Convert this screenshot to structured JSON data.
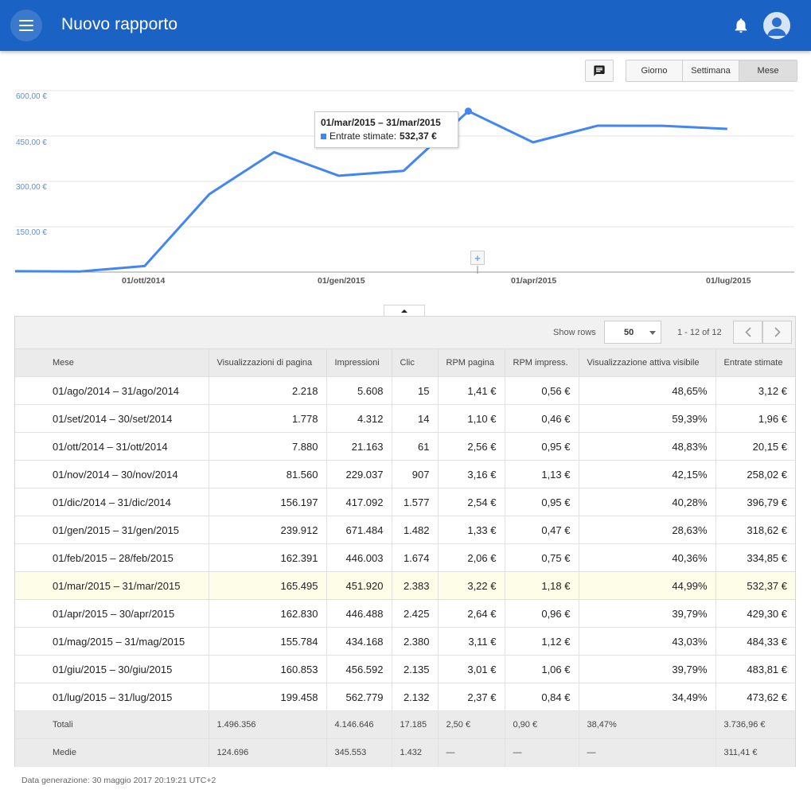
{
  "header": {
    "title": "Nuovo rapporto"
  },
  "toolbar": {
    "granularity": [
      "Giorno",
      "Settimana",
      "Mese"
    ],
    "active": "Mese"
  },
  "chart_data": {
    "type": "line",
    "series": [
      {
        "name": "Entrate stimate",
        "color": "#4285f4",
        "values": [
          3.12,
          1.96,
          20.15,
          258.02,
          396.79,
          318.62,
          334.85,
          532.37,
          429.3,
          484.33,
          483.81,
          473.62
        ]
      }
    ],
    "x": [
      "01/ago/2014",
      "01/set/2014",
      "01/ott/2014",
      "01/nov/2014",
      "01/dic/2014",
      "01/gen/2015",
      "01/feb/2015",
      "01/mar/2015",
      "01/apr/2015",
      "01/mag/2015",
      "01/giu/2015",
      "01/lug/2015"
    ],
    "y_ticks": [
      "150,00 €",
      "300,00 €",
      "450,00 €",
      "600,00 €"
    ],
    "x_tick_labels": [
      "01/ott/2014",
      "01/gen/2015",
      "01/apr/2015",
      "01/lug/2015"
    ],
    "ylim": [
      0,
      600
    ],
    "grid": true,
    "tooltip": {
      "title": "01/mar/2015 – 31/mar/2015",
      "label": "Entrate stimate:",
      "value": "532,37 €"
    }
  },
  "pager": {
    "show_rows_label": "Show rows",
    "rows": "50",
    "range": "1 - 12 of 12"
  },
  "table": {
    "columns": [
      "Mese",
      "Visualizzazioni di pagina",
      "Impressioni",
      "Clic",
      "RPM pagina",
      "RPM impress.",
      "Visualizzazione attiva visibile",
      "Entrate stimate"
    ],
    "rows": [
      [
        "01/ago/2014 – 31/ago/2014",
        "2.218",
        "5.608",
        "15",
        "1,41 €",
        "0,56 €",
        "48,65%",
        "3,12 €"
      ],
      [
        "01/set/2014 – 30/set/2014",
        "1.778",
        "4.312",
        "14",
        "1,10 €",
        "0,46 €",
        "59,39%",
        "1,96 €"
      ],
      [
        "01/ott/2014 – 31/ott/2014",
        "7.880",
        "21.163",
        "61",
        "2,56 €",
        "0,95 €",
        "48,83%",
        "20,15 €"
      ],
      [
        "01/nov/2014 – 30/nov/2014",
        "81.560",
        "229.037",
        "907",
        "3,16 €",
        "1,13 €",
        "42,15%",
        "258,02 €"
      ],
      [
        "01/dic/2014 – 31/dic/2014",
        "156.197",
        "417.092",
        "1.577",
        "2,54 €",
        "0,95 €",
        "40,28%",
        "396,79 €"
      ],
      [
        "01/gen/2015 – 31/gen/2015",
        "239.912",
        "671.484",
        "1.482",
        "1,33 €",
        "0,47 €",
        "28,63%",
        "318,62 €"
      ],
      [
        "01/feb/2015 – 28/feb/2015",
        "162.391",
        "446.003",
        "1.674",
        "2,06 €",
        "0,75 €",
        "40,36%",
        "334,85 €"
      ],
      [
        "01/mar/2015 – 31/mar/2015",
        "165.495",
        "451.920",
        "2.383",
        "3,22 €",
        "1,18 €",
        "44,99%",
        "532,37 €"
      ],
      [
        "01/apr/2015 – 30/apr/2015",
        "162.830",
        "446.488",
        "2.425",
        "2,64 €",
        "0,96 €",
        "39,79%",
        "429,30 €"
      ],
      [
        "01/mag/2015 – 31/mag/2015",
        "155.784",
        "434.168",
        "2.380",
        "3,11 €",
        "1,12 €",
        "43,03%",
        "484,33 €"
      ],
      [
        "01/giu/2015 – 30/giu/2015",
        "160.853",
        "456.592",
        "2.135",
        "3,01 €",
        "1,06 €",
        "39,79%",
        "483,81 €"
      ],
      [
        "01/lug/2015 – 31/lug/2015",
        "199.458",
        "562.779",
        "2.132",
        "2,37 €",
        "0,84 €",
        "34,49%",
        "473,62 €"
      ]
    ],
    "highlighted_row": 7,
    "totals": [
      "Totali",
      "1.496.356",
      "4.146.646",
      "17.185",
      "2,50 €",
      "0,90 €",
      "38,47%",
      "3.736,96 €"
    ],
    "averages": [
      "Medie",
      "124.696",
      "345.553",
      "1.432",
      "—",
      "—",
      "—",
      "311,41 €"
    ]
  },
  "footer": {
    "text": "Data generazione: 30 maggio 2017 20:19:21 UTC+2"
  }
}
